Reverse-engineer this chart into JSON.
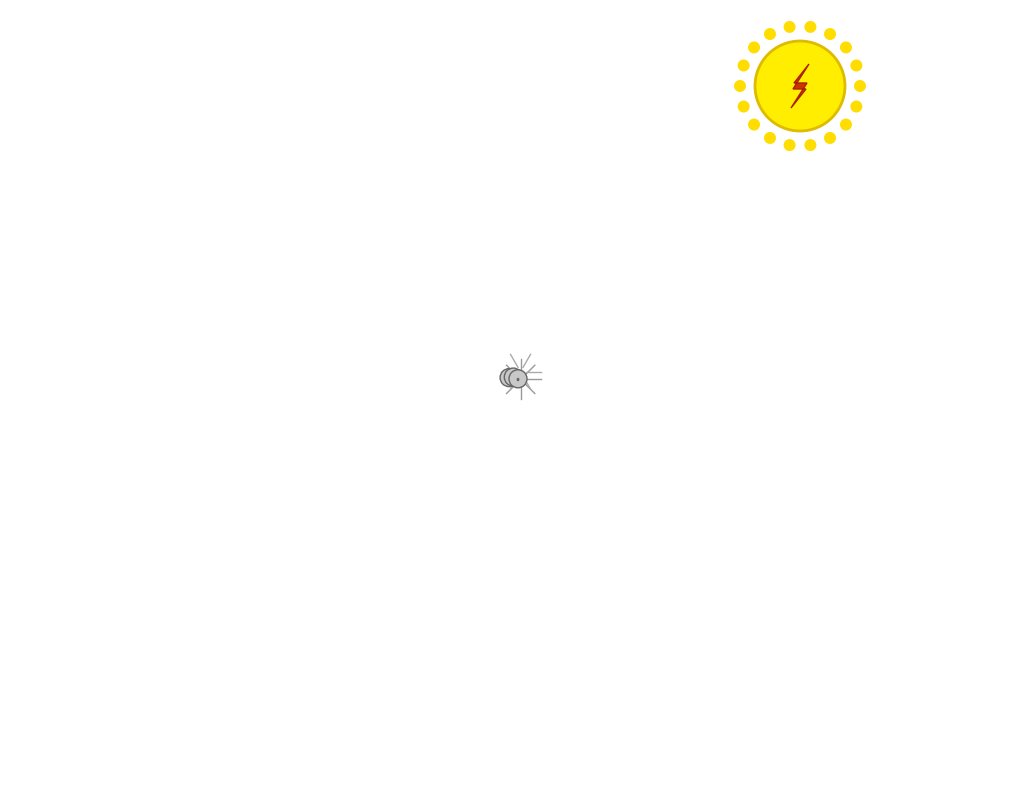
{
  "bg": "#ffffff",
  "wall_white": "#f5f5f5",
  "wall_light": "#e8e8e8",
  "wall_mid": "#d0d0d0",
  "wall_dark": "#b0b0b0",
  "outline": "#1a1a1a",
  "outline2": "#555555",
  "floor_red": "#dd2222",
  "floor_blue": "#3355dd",
  "floor_pink": "#dd8888",
  "floor_lblue": "#8899dd",
  "pipe_orange": "#ff8c00",
  "pipe_yellow": "#ffcc00",
  "pv_orange": "#ff8c00",
  "pv_dark_orange": "#cc5500",
  "panel_dark": "#151520",
  "panel_grid": "#2a2a45",
  "sun_yellow": "#ffee00",
  "sun_ray": "#ffdd00",
  "sun_bolt": "#cc3300",
  "ebox": "#ff8c00",
  "ebox_edge": "#993300",
  "fig_fill": "#c8c8c8",
  "fig_edge": "#666666",
  "roof_dot": "#cccccc",
  "brick_line": "#bbbbbb",
  "kitchen": "#cccccc",
  "furniture": "#c0c0c0",
  "glass": "#cce8f0",
  "ground": "#444444",
  "starburst": "#aaaaaa",
  "arc_line": "#bbbbbb"
}
